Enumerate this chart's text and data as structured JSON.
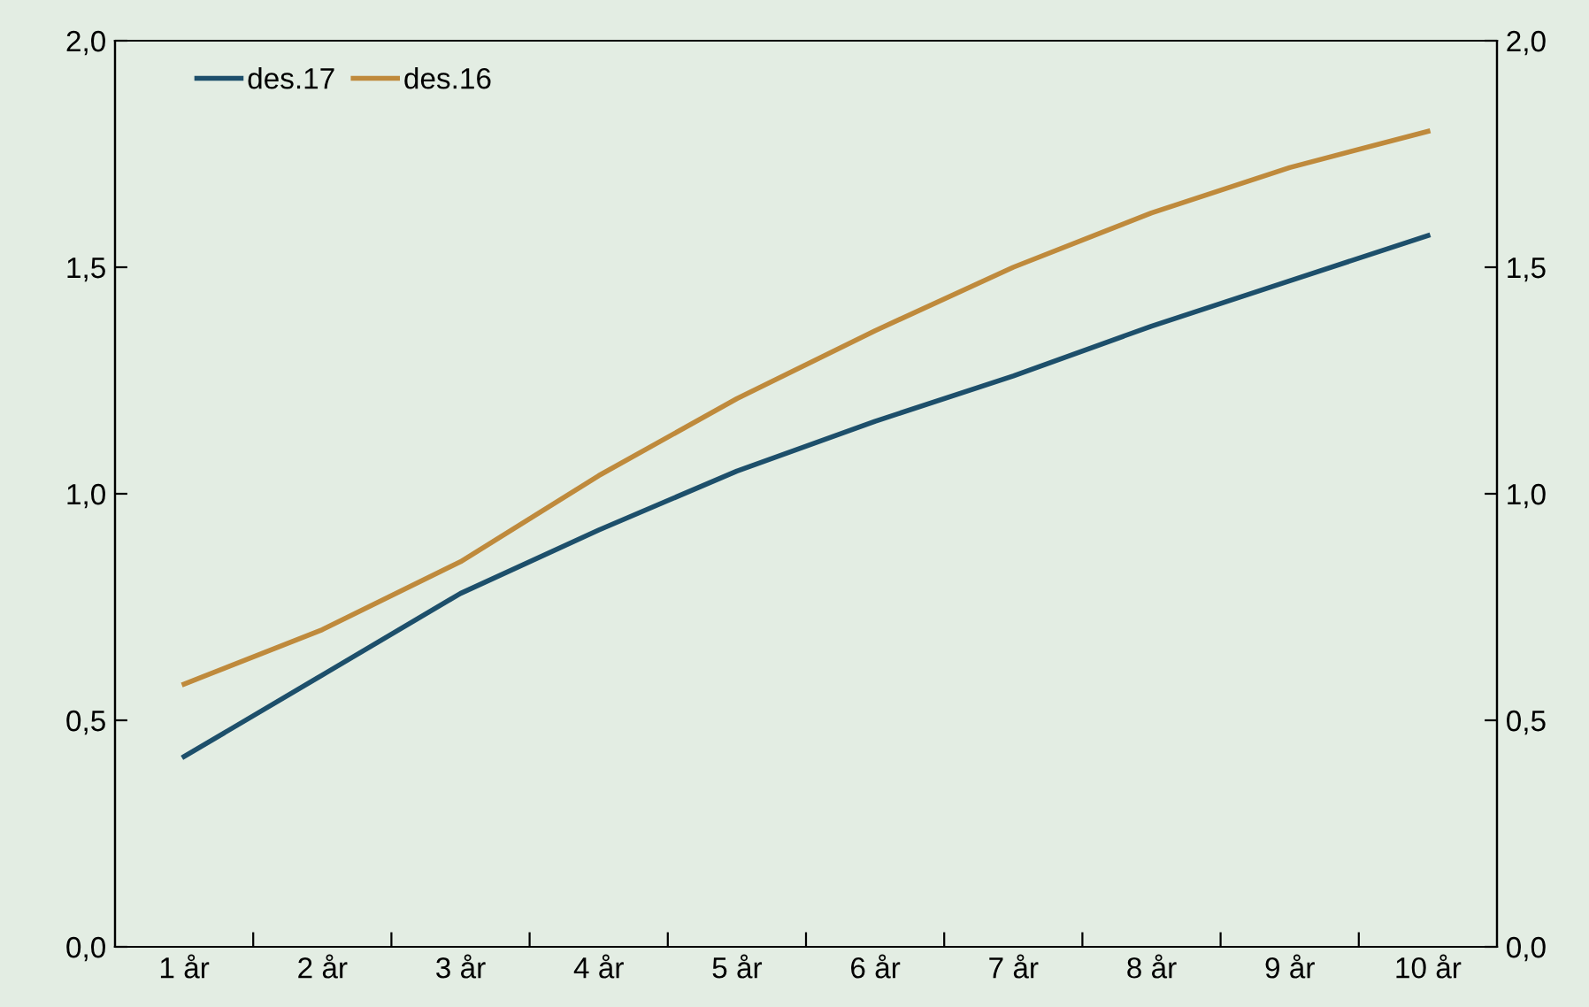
{
  "chart_data": {
    "type": "line",
    "categories": [
      "1 år",
      "2 år",
      "3 år",
      "4 år",
      "5 år",
      "6 år",
      "7 år",
      "8 år",
      "9 år",
      "10 år"
    ],
    "series": [
      {
        "name": "des.17",
        "color": "#1d4f6b",
        "values": [
          0.42,
          0.6,
          0.78,
          0.92,
          1.05,
          1.16,
          1.26,
          1.37,
          1.47,
          1.57
        ]
      },
      {
        "name": "des.16",
        "color": "#bf8a3c",
        "values": [
          0.58,
          0.7,
          0.85,
          1.04,
          1.21,
          1.36,
          1.5,
          1.62,
          1.72,
          1.8
        ]
      }
    ],
    "ylim": [
      0,
      2
    ],
    "yticks": [
      {
        "value": 0,
        "label": "0,0"
      },
      {
        "value": 0.5,
        "label": "0,5"
      },
      {
        "value": 1,
        "label": "1,0"
      },
      {
        "value": 1.5,
        "label": "1,5"
      },
      {
        "value": 2,
        "label": "2,0"
      }
    ],
    "y2lim": [
      0,
      2
    ],
    "y2ticks": [
      {
        "value": 0,
        "label": "0,0"
      },
      {
        "value": 0.5,
        "label": "0,5"
      },
      {
        "value": 1,
        "label": "1,0"
      },
      {
        "value": 1.5,
        "label": "1,5"
      },
      {
        "value": 2,
        "label": "2,0"
      }
    ],
    "grid": false,
    "legend": "top left",
    "marker": "none",
    "line_style": "solid"
  }
}
